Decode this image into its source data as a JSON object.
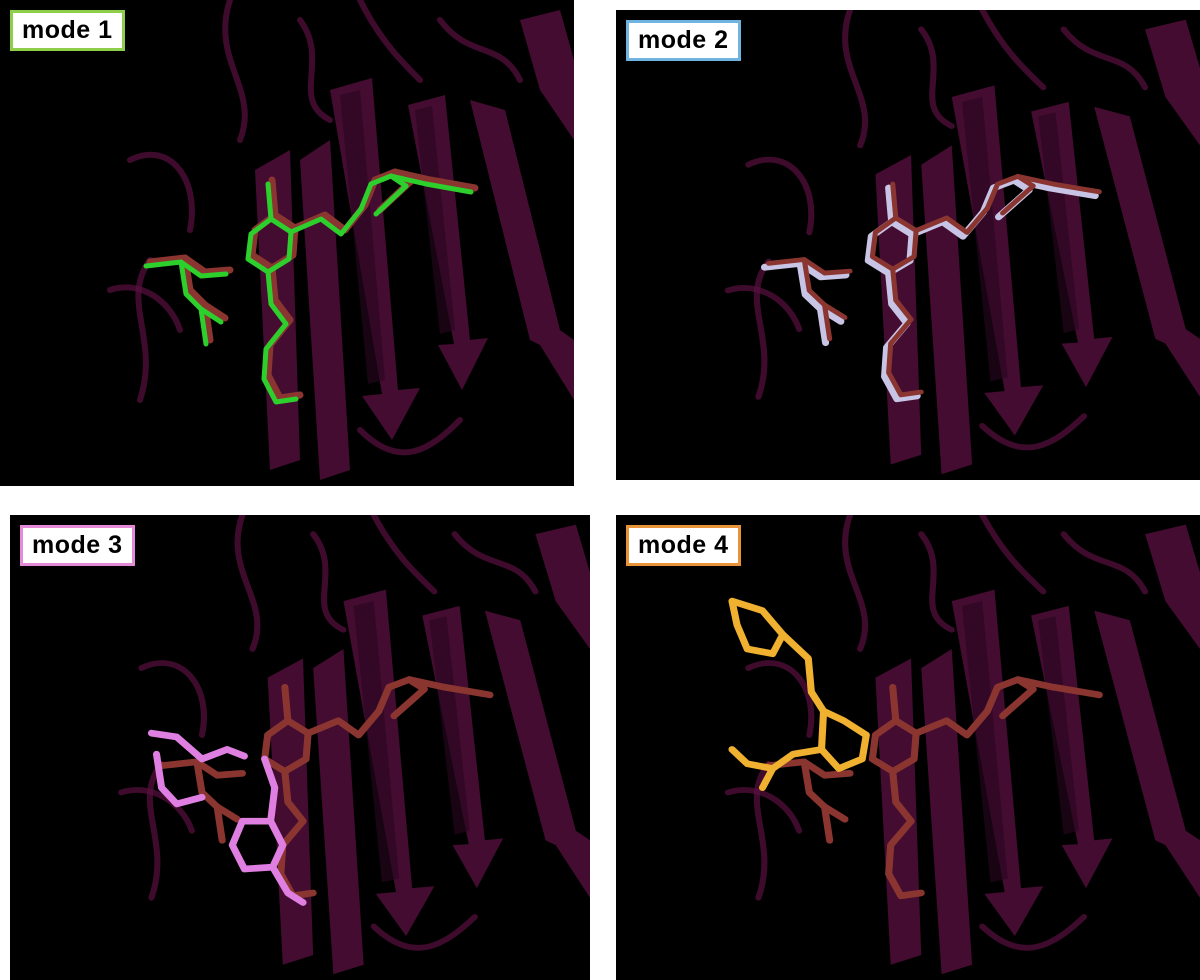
{
  "panels": [
    {
      "label": "mode 1",
      "border_color": "#8fce4a",
      "pose_color": "#2ccf2c"
    },
    {
      "label": "mode 2",
      "border_color": "#6fb3e0",
      "pose_color": "#c8c4e6"
    },
    {
      "label": "mode 3",
      "border_color": "#e58ad6",
      "pose_color": "#e07fe2"
    },
    {
      "label": "mode 4",
      "border_color": "#e8923a",
      "pose_color": "#f0b030"
    }
  ],
  "colors": {
    "background": "#000000",
    "protein_ribbon": "#5a1040",
    "reference_ligand": "#8a3530"
  }
}
